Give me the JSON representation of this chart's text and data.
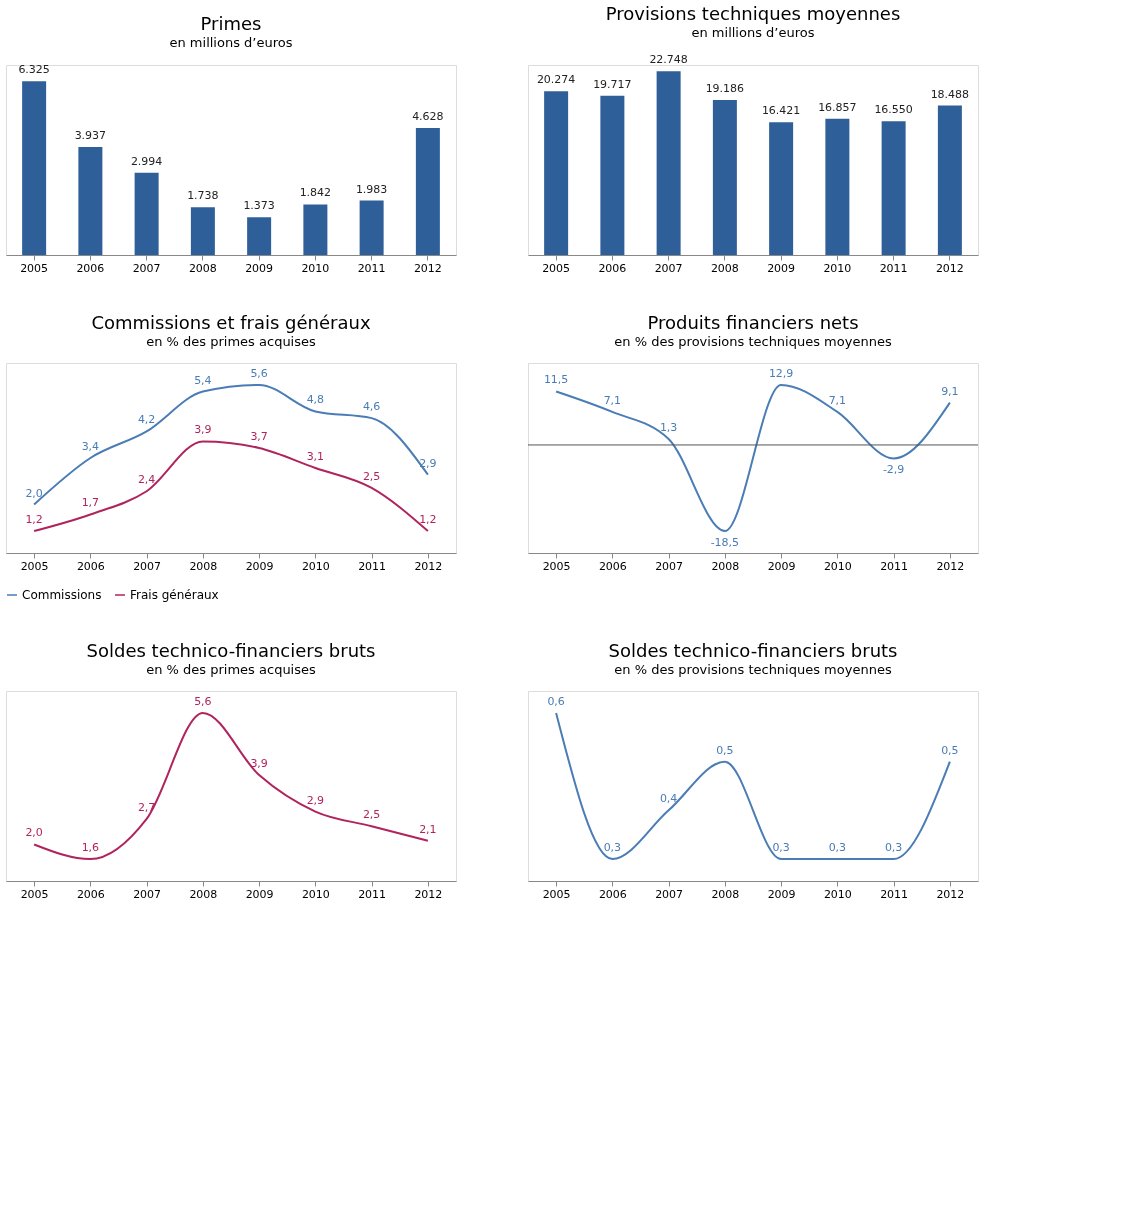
{
  "chart_data": [
    {
      "type": "bar",
      "title": "Primes",
      "subtitle": "en millions d’euros",
      "categories": [
        "2005",
        "2006",
        "2007",
        "2008",
        "2009",
        "2010",
        "2011",
        "2012"
      ],
      "values": [
        6325,
        3937,
        2994,
        1738,
        1373,
        1842,
        1983,
        4628
      ],
      "value_labels": [
        "6.325",
        "3.937",
        "2.994",
        "1.738",
        "1.373",
        "1.842",
        "1.983",
        "4.628"
      ],
      "color": "#2f5f98"
    },
    {
      "type": "bar",
      "title": "Provisions techniques moyennes",
      "subtitle": "en millions d’euros",
      "categories": [
        "2005",
        "2006",
        "2007",
        "2008",
        "2009",
        "2010",
        "2011",
        "2012"
      ],
      "values": [
        20274,
        19717,
        22748,
        19186,
        16421,
        16857,
        16550,
        18488
      ],
      "value_labels": [
        "20.274",
        "19.717",
        "22.748",
        "19.186",
        "16.421",
        "16.857",
        "16.550",
        "18.488"
      ],
      "color": "#2f5f98"
    },
    {
      "type": "line",
      "title": "Commissions et frais généraux",
      "subtitle": "en % des primes acquises",
      "categories": [
        "2005",
        "2006",
        "2007",
        "2008",
        "2009",
        "2010",
        "2011",
        "2012"
      ],
      "legend": "bottom",
      "series": [
        {
          "name": "Commissions",
          "color": "#4a7cb5",
          "values": [
            2.0,
            3.4,
            4.2,
            5.4,
            5.6,
            4.8,
            4.6,
            2.9
          ],
          "value_labels": [
            "2,0",
            "3,4",
            "4,2",
            "5,4",
            "5,6",
            "4,8",
            "4,6",
            "2,9"
          ]
        },
        {
          "name": "Frais généraux",
          "color": "#b0245e",
          "values": [
            1.2,
            1.7,
            2.4,
            3.9,
            3.7,
            3.1,
            2.5,
            1.2
          ],
          "value_labels": [
            "1,2",
            "1,7",
            "2,4",
            "3,9",
            "3,7",
            "3,1",
            "2,5",
            "1,2"
          ]
        }
      ]
    },
    {
      "type": "line",
      "title": "Produits financiers nets",
      "subtitle": "en % des provisions techniques moyennes",
      "categories": [
        "2005",
        "2006",
        "2007",
        "2008",
        "2009",
        "2010",
        "2011",
        "2012"
      ],
      "ref_lines": [
        {
          "axis": "y",
          "value": 0,
          "color": "#555555"
        }
      ],
      "series": [
        {
          "color": "#4a7cb5",
          "values": [
            11.5,
            7.1,
            1.3,
            -18.5,
            12.9,
            7.1,
            -2.9,
            9.1
          ],
          "value_labels": [
            "11,5",
            "7,1",
            "1,3",
            "-18,5",
            "12,9",
            "7,1",
            "-2,9",
            "9,1"
          ]
        }
      ]
    },
    {
      "type": "line",
      "title": "Soldes technico-financiers bruts",
      "subtitle": "en % des primes acquises",
      "categories": [
        "2005",
        "2006",
        "2007",
        "2008",
        "2009",
        "2010",
        "2011",
        "2012"
      ],
      "series": [
        {
          "color": "#b0245e",
          "values": [
            2.0,
            1.6,
            2.7,
            5.6,
            3.9,
            2.9,
            2.5,
            2.1
          ],
          "value_labels": [
            "2,0",
            "1,6",
            "2,7",
            "5,6",
            "3,9",
            "2,9",
            "2,5",
            "2,1"
          ]
        }
      ]
    },
    {
      "type": "line",
      "title": "Soldes technico-financiers bruts",
      "subtitle": "en % des provisions techniques moyennes",
      "categories": [
        "2005",
        "2006",
        "2007",
        "2008",
        "2009",
        "2010",
        "2011",
        "2012"
      ],
      "series": [
        {
          "color": "#4a7cb5",
          "values": [
            0.6,
            0.3,
            0.4,
            0.5,
            0.3,
            0.3,
            0.3,
            0.5
          ],
          "value_labels": [
            "0,6",
            "0,3",
            "0,4",
            "0,5",
            "0,3",
            "0,3",
            "0,3",
            "0,5"
          ]
        }
      ]
    }
  ]
}
